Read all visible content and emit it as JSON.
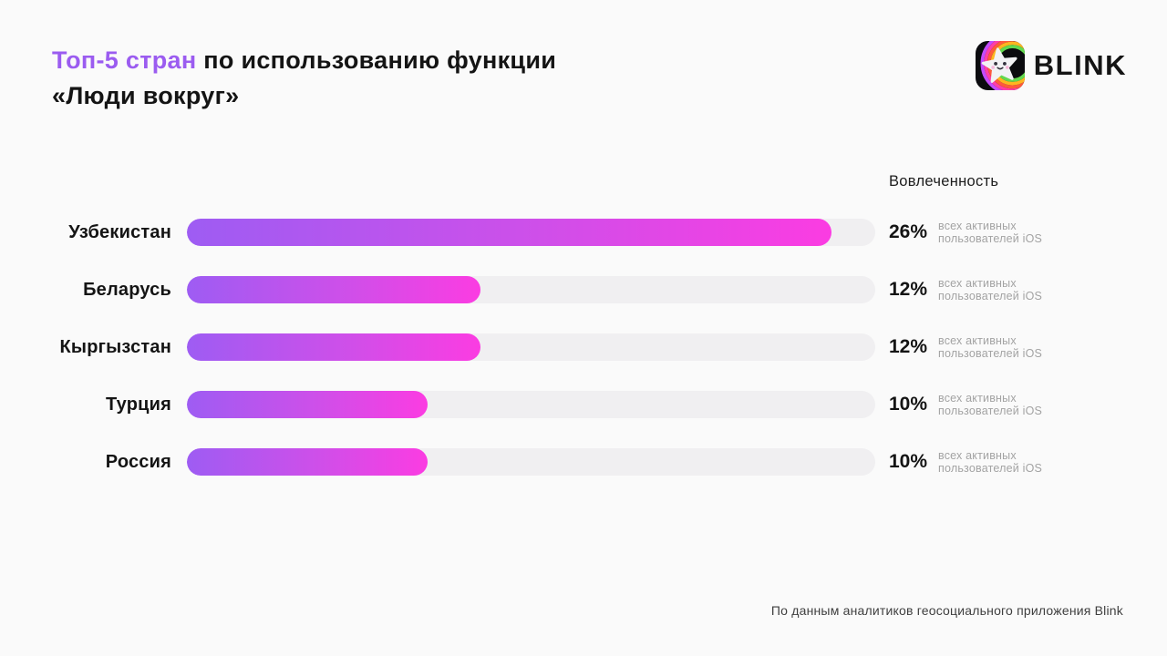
{
  "colors": {
    "background": "#fafafa",
    "accent_purple": "#9b5cf0",
    "bar_gradient_start": "#9e5cf3",
    "bar_gradient_end": "#fb3ce2",
    "bar_track": "#f0eff1",
    "text_dark": "#141414",
    "text_gray": "#a3a3a3",
    "footer_text": "#3f3f3f"
  },
  "header": {
    "title_highlight": "Топ-5 стран",
    "title_rest": " по использованию функции",
    "title_line2": "«Люди вокруг»"
  },
  "logo": {
    "app_name": "BLINK",
    "icon": "blink-star-app-icon"
  },
  "chart": {
    "column_header": "Вовлеченность",
    "rows": [
      {
        "country": "Узбекистан",
        "percent": "26%",
        "note_line1": "всех активных",
        "note_line2": "пользователей iOS",
        "bar_pct": 93.6
      },
      {
        "country": "Беларусь",
        "percent": "12%",
        "note_line1": "всех активных",
        "note_line2": "пользователей iOS",
        "bar_pct": 42.6
      },
      {
        "country": "Кыргызстан",
        "percent": "12%",
        "note_line1": "всех активных",
        "note_line2": "пользователей iOS",
        "bar_pct": 42.6
      },
      {
        "country": "Турция",
        "percent": "10%",
        "note_line1": "всех активных",
        "note_line2": "пользователей iOS",
        "bar_pct": 35.0
      },
      {
        "country": "Россия",
        "percent": "10%",
        "note_line1": "всех активных",
        "note_line2": "пользователей iOS",
        "bar_pct": 35.0
      }
    ]
  },
  "footer": {
    "source": "По данным аналитиков геосоциального приложения Blink"
  },
  "chart_data": {
    "type": "bar",
    "orientation": "horizontal",
    "title": "Топ-5 стран по использованию функции «Люди вокруг»",
    "categories": [
      "Узбекистан",
      "Беларусь",
      "Кыргызстан",
      "Турция",
      "Россия"
    ],
    "values": [
      26,
      12,
      12,
      10,
      10
    ],
    "unit": "%",
    "value_column_label": "Вовлеченность",
    "value_annotation": "всех активных пользователей iOS",
    "xlim": [
      0,
      27.8
    ],
    "grid": false,
    "legend": false,
    "bar_gradient": [
      "#9e5cf3",
      "#fb3ce2"
    ],
    "track_color": "#f0eff1",
    "source": "По данным аналитиков геосоциального приложения Blink"
  }
}
